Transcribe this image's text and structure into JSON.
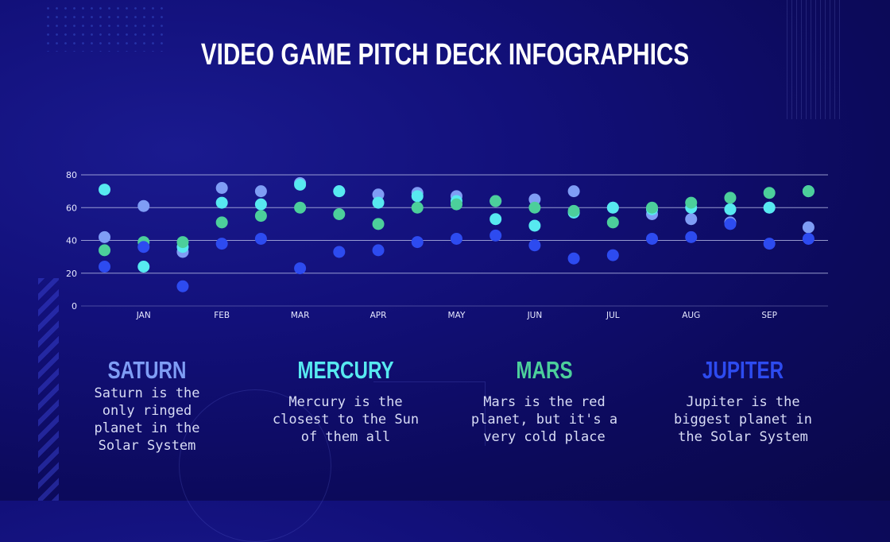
{
  "title": "VIDEO GAME PITCH DECK INFOGRAPHICS",
  "colors": {
    "background": "#12107a",
    "series_1": "#7f9df5",
    "series_2": "#57e9f0",
    "series_3": "#4ccf9b",
    "series_4": "#2d4bf0",
    "gridline": "#b8bde8",
    "tick_label": "#e6e8ff"
  },
  "planets": [
    {
      "name": "SATURN",
      "color": "#7f9df5",
      "desc_lines": [
        "Saturn is the",
        "only ringed",
        "planet in the",
        "Solar System"
      ]
    },
    {
      "name": "MERCURY",
      "color": "#57e9f0",
      "desc_lines": [
        "Mercury is the",
        "closest to the Sun",
        "of them all"
      ]
    },
    {
      "name": "MARS",
      "color": "#4ccf9b",
      "desc_lines": [
        "Mars is the red",
        "planet, but it's a",
        "very cold place"
      ]
    },
    {
      "name": "JUPITER",
      "color": "#2d4bf0",
      "desc_lines": [
        "Jupiter is the",
        "biggest planet in",
        "the Solar System"
      ]
    }
  ],
  "chart_data": {
    "type": "scatter",
    "x_ticks": [
      1,
      3,
      5,
      7,
      9,
      11,
      13,
      15,
      17
    ],
    "x_tick_labels": [
      "JAN",
      "FEB",
      "MAR",
      "APR",
      "MAY",
      "JUN",
      "JUL",
      "AUG",
      "SEP"
    ],
    "x": [
      0,
      1,
      2,
      3,
      4,
      5,
      6,
      7,
      8,
      9,
      10,
      11,
      12,
      13,
      14,
      15,
      16,
      17,
      18
    ],
    "xlim": [
      -0.6,
      18.5
    ],
    "ylim": [
      0,
      80
    ],
    "y_ticks": [
      0,
      20,
      40,
      60,
      80
    ],
    "grid": true,
    "series": [
      {
        "values": [
          42,
          61,
          33,
          72,
          70,
          75,
          70,
          68,
          69,
          67,
          64,
          65,
          70,
          60,
          56,
          53,
          51,
          60,
          48
        ],
        "color": "#7f9df5"
      },
      {
        "values": [
          71,
          24,
          36,
          63,
          62,
          74,
          70,
          63,
          67,
          64,
          53,
          49,
          57,
          60,
          59,
          60,
          59,
          60,
          70
        ],
        "color": "#57e9f0"
      },
      {
        "values": [
          34,
          39,
          39,
          51,
          55,
          60,
          56,
          50,
          60,
          62,
          64,
          60,
          58,
          51,
          60,
          63,
          66,
          69,
          70
        ],
        "color": "#4ccf9b"
      },
      {
        "values": [
          24,
          36,
          12,
          38,
          41,
          23,
          33,
          34,
          39,
          41,
          43,
          37,
          29,
          31,
          41,
          42,
          50,
          38,
          41
        ],
        "color": "#2d4bf0"
      }
    ]
  }
}
